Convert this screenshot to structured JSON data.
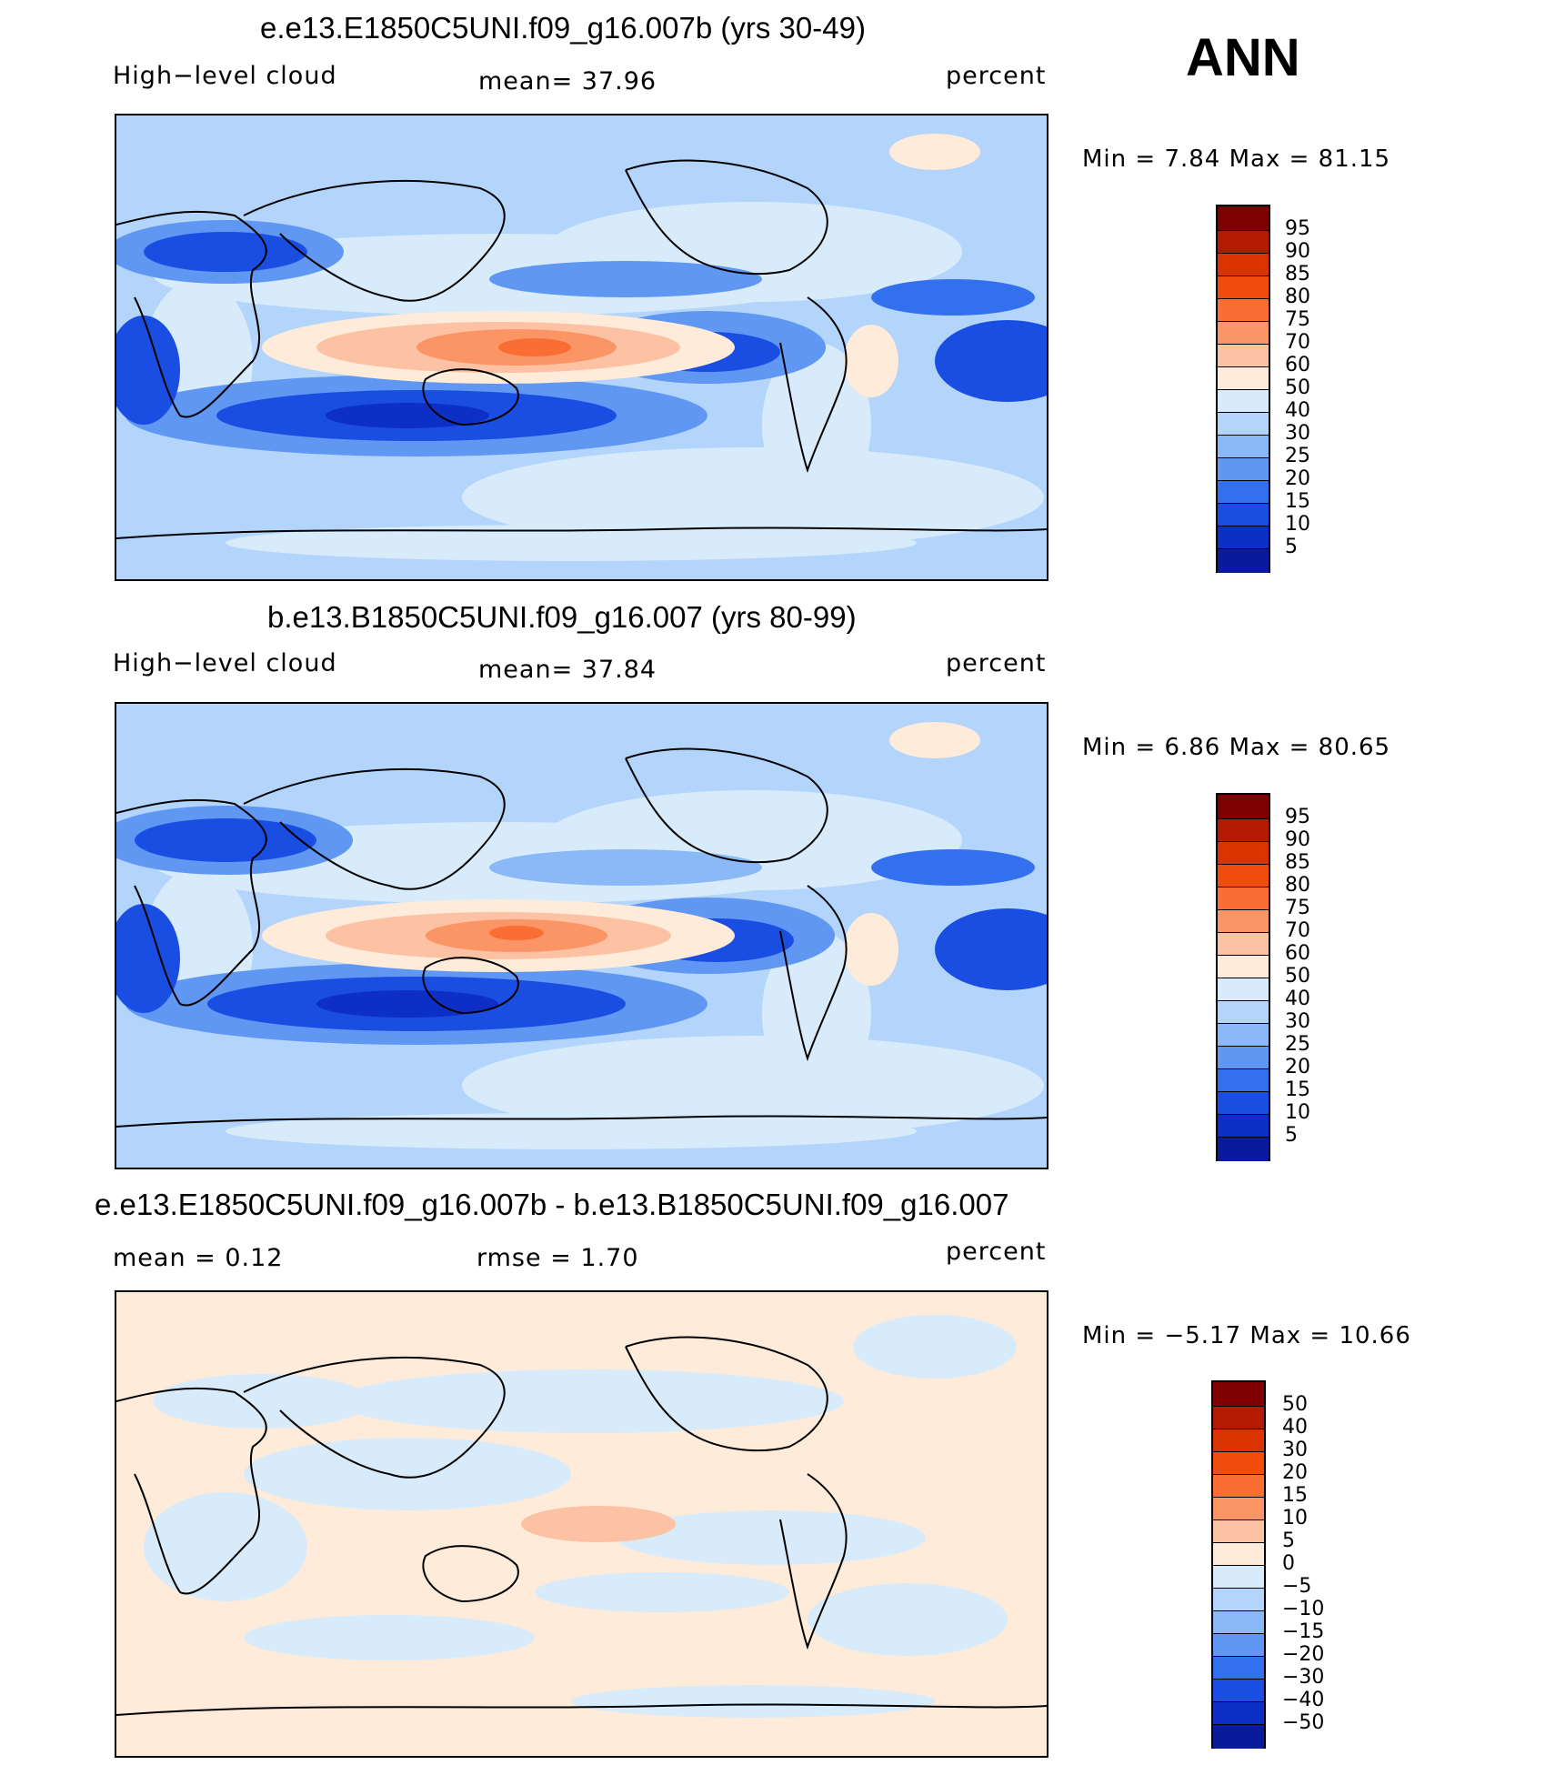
{
  "season": "ANN",
  "panels": [
    {
      "title": "e.e13.E1850C5UNI.f09_g16.007b (yrs 30-49)",
      "left_label": "High−level  cloud",
      "center_label": "mean=   37.96",
      "right_label": "percent",
      "minmax": "Min  =     7.84  Max  =    81.15",
      "kind": "field"
    },
    {
      "title": "b.e13.B1850C5UNI.f09_g16.007 (yrs 80-99)",
      "left_label": "High−level  cloud",
      "center_label": "mean=   37.84",
      "right_label": "percent",
      "minmax": "Min  =     6.86  Max  =    80.65",
      "kind": "field"
    },
    {
      "title": "e.e13.E1850C5UNI.f09_g16.007b - b.e13.B1850C5UNI.f09_g16.007",
      "left_label": "mean  =     0.12",
      "center_label": "rmse  =     1.70",
      "right_label": "percent",
      "minmax": "Min  =   −5.17  Max  =    10.66",
      "kind": "diff"
    }
  ],
  "colorbars": {
    "field": {
      "colors": [
        "#7f0000",
        "#b31a00",
        "#d93300",
        "#f04d0d",
        "#fa6e33",
        "#fb9566",
        "#fcc2a3",
        "#feebd9",
        "#d8ebfb",
        "#b3d4fb",
        "#8bb9f7",
        "#5f97f2",
        "#3370ee",
        "#1a4ee3",
        "#0d2fc5",
        "#0a1a9c",
        "#00007a"
      ],
      "labels": [
        "95",
        "90",
        "85",
        "80",
        "75",
        "70",
        "60",
        "50",
        "40",
        "30",
        "25",
        "20",
        "15",
        "10",
        "5"
      ]
    },
    "diff": {
      "colors": [
        "#7f0000",
        "#b31a00",
        "#d93300",
        "#f04d0d",
        "#fa6e33",
        "#fb9566",
        "#fcc2a3",
        "#feebd9",
        "#d8ebfb",
        "#b3d4fb",
        "#8bb9f7",
        "#5f97f2",
        "#3370ee",
        "#1a4ee3",
        "#0d2fc5",
        "#0a1a9c",
        "#00007a"
      ],
      "labels": [
        "50",
        "40",
        "30",
        "20",
        "15",
        "10",
        "5",
        "0",
        "−5",
        "−10",
        "−15",
        "−20",
        "−30",
        "−40",
        "−50"
      ]
    }
  },
  "chart_data": [
    {
      "type": "heatmap",
      "title": "e.e13.E1850C5UNI.f09_g16.007b (yrs 30-49)",
      "variable": "High-level cloud",
      "units": "percent",
      "mean": 37.96,
      "min": 7.84,
      "max": 81.15,
      "contour_levels": [
        5,
        10,
        15,
        20,
        25,
        30,
        40,
        50,
        60,
        70,
        75,
        80,
        85,
        90,
        95
      ]
    },
    {
      "type": "heatmap",
      "title": "b.e13.B1850C5UNI.f09_g16.007 (yrs 80-99)",
      "variable": "High-level cloud",
      "units": "percent",
      "mean": 37.84,
      "min": 6.86,
      "max": 80.65,
      "contour_levels": [
        5,
        10,
        15,
        20,
        25,
        30,
        40,
        50,
        60,
        70,
        75,
        80,
        85,
        90,
        95
      ]
    },
    {
      "type": "heatmap",
      "title": "e.e13.E1850C5UNI.f09_g16.007b - b.e13.B1850C5UNI.f09_g16.007",
      "units": "percent",
      "mean": 0.12,
      "rmse": 1.7,
      "min": -5.17,
      "max": 10.66,
      "contour_levels": [
        -50,
        -40,
        -30,
        -20,
        -15,
        -10,
        -5,
        0,
        5,
        10,
        15,
        20,
        30,
        40,
        50
      ]
    }
  ]
}
